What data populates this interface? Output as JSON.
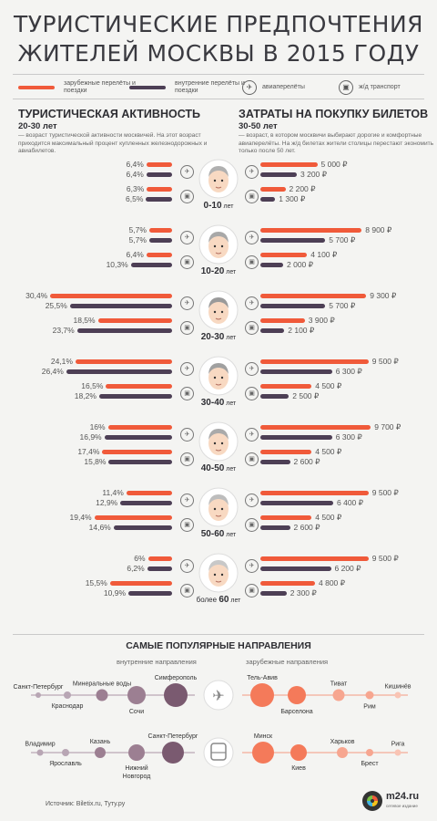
{
  "title_line1": "ТУРИСТИЧЕСКИЕ ПРЕДПОЧТЕНИЯ",
  "title_line2": "ЖИТЕЛЕЙ МОСКВЫ В 2015 ГОДУ",
  "legend": {
    "foreign": "зарубежные перелёты и поездки",
    "domestic": "внутренние перелёты и поездки",
    "air": "авиаперелёты",
    "rail": "ж/д транспорт"
  },
  "colors": {
    "foreign": "#f05a3a",
    "domestic": "#4d3f55",
    "background": "#f4f4f2"
  },
  "icons": {
    "air": "airplane-icon",
    "rail": "train-icon"
  },
  "activity": {
    "heading": "ТУРИСТИЧЕСКАЯ АКТИВНОСТЬ",
    "sub": "20-30 лет",
    "text": "— возраст туристической активности москвичей. На этот возраст приходится максимальный процент купленных железнодорожных и авиабилетов."
  },
  "spending": {
    "heading": "ЗАТРАТЫ НА ПОКУПКУ БИЛЕТОВ",
    "sub": "30-50 лет",
    "text": "— возраст, в котором москвичи выбирают дорогие и комфортные авиаперелёты. На ж/д билетах жители столицы перестают экономить только после 50 лет."
  },
  "chart_data": [
    {
      "type": "bar",
      "title": "ТУРИСТИЧЕСКАЯ АКТИВНОСТЬ",
      "unit": "%",
      "categories": [
        "0-10 лет",
        "10-20 лет",
        "20-30 лет",
        "30-40 лет",
        "40-50 лет",
        "50-60 лет",
        "более 60 лет"
      ],
      "series": [
        {
          "name": "зарубежные перелёты и поездки",
          "transport": "авиаперелёты",
          "values": [
            6.4,
            5.7,
            30.4,
            24.1,
            16,
            11.4,
            6
          ],
          "labels": [
            "6,4%",
            "5,7%",
            "30,4%",
            "24,1%",
            "16%",
            "11,4%",
            "6%"
          ]
        },
        {
          "name": "внутренние перелёты и поездки",
          "transport": "авиаперелёты",
          "values": [
            6.4,
            5.7,
            25.5,
            26.4,
            16.9,
            12.9,
            6.2
          ],
          "labels": [
            "6,4%",
            "5,7%",
            "25,5%",
            "26,4%",
            "16,9%",
            "12,9%",
            "6,2%"
          ]
        },
        {
          "name": "зарубежные перелёты и поездки",
          "transport": "ж/д транспорт",
          "values": [
            6.3,
            6.4,
            18.5,
            16.5,
            17.4,
            19.4,
            15.5
          ],
          "labels": [
            "6,3%",
            "6,4%",
            "18,5%",
            "16,5%",
            "17,4%",
            "19,4%",
            "15,5%"
          ]
        },
        {
          "name": "внутренние перелёты и поездки",
          "transport": "ж/д транспорт",
          "values": [
            6.5,
            10.3,
            23.7,
            18.2,
            15.8,
            14.6,
            10.9
          ],
          "labels": [
            "6,5%",
            "10,3%",
            "23,7%",
            "18,2%",
            "15,8%",
            "14,6%",
            "10,9%"
          ]
        }
      ]
    },
    {
      "type": "bar",
      "title": "ЗАТРАТЫ НА ПОКУПКУ БИЛЕТОВ",
      "unit": "₽",
      "categories": [
        "0-10 лет",
        "10-20 лет",
        "20-30 лет",
        "30-40 лет",
        "40-50 лет",
        "50-60 лет",
        "более 60 лет"
      ],
      "series": [
        {
          "name": "зарубежные перелёты и поездки",
          "transport": "авиаперелёты",
          "values": [
            5000,
            8900,
            9300,
            9500,
            9700,
            9500,
            9500
          ],
          "labels": [
            "5 000 ₽",
            "8 900 ₽",
            "9 300 ₽",
            "9 500 ₽",
            "9 700 ₽",
            "9 500 ₽",
            "9 500 ₽"
          ]
        },
        {
          "name": "внутренние перелёты и поездки",
          "transport": "авиаперелёты",
          "values": [
            3200,
            5700,
            5700,
            6300,
            6300,
            6400,
            6200
          ],
          "labels": [
            "3 200 ₽",
            "5 700 ₽",
            "5 700 ₽",
            "6 300 ₽",
            "6 300 ₽",
            "6 400 ₽",
            "6 200 ₽"
          ]
        },
        {
          "name": "зарубежные перелёты и поездки",
          "transport": "ж/д транспорт",
          "values": [
            2200,
            4100,
            3900,
            4500,
            4500,
            4500,
            4800
          ],
          "labels": [
            "2 200 ₽",
            "4 100 ₽",
            "3 900 ₽",
            "4 500 ₽",
            "4 500 ₽",
            "4 500 ₽",
            "4 800 ₽"
          ]
        },
        {
          "name": "внутренние перелёты и поездки",
          "transport": "ж/д транспорт",
          "values": [
            1300,
            2000,
            2100,
            2500,
            2600,
            2600,
            2300
          ],
          "labels": [
            "1 300 ₽",
            "2 000 ₽",
            "2 100 ₽",
            "2 500 ₽",
            "2 600 ₽",
            "2 600 ₽",
            "2 300 ₽"
          ]
        }
      ]
    }
  ],
  "ages": [
    {
      "main": "0-10",
      "suffix": "лет",
      "prefix": ""
    },
    {
      "main": "10-20",
      "suffix": "лет",
      "prefix": ""
    },
    {
      "main": "20-30",
      "suffix": "лет",
      "prefix": ""
    },
    {
      "main": "30-40",
      "suffix": "лет",
      "prefix": ""
    },
    {
      "main": "40-50",
      "suffix": "лет",
      "prefix": ""
    },
    {
      "main": "50-60",
      "suffix": "лет",
      "prefix": ""
    },
    {
      "main": "60",
      "suffix": "лет",
      "prefix": "более"
    }
  ],
  "destinations": {
    "heading": "САМЫЕ ПОПУЛЯРНЫЕ НАПРАВЛЕНИЯ",
    "domestic_label": "внутренние направления",
    "foreign_label": "зарубежные направления",
    "air_domestic": [
      "Санкт-Петербург",
      "Краснодар",
      "Минеральные воды",
      "Сочи",
      "Симферополь"
    ],
    "air_foreign": [
      "Тель-Авив",
      "Барселона",
      "Тиват",
      "Рим",
      "Кишинёв"
    ],
    "rail_domestic": [
      "Владимир",
      "Ярославль",
      "Казань",
      "Нижний Новгород",
      "Санкт-Петербург"
    ],
    "rail_foreign": [
      "Минск",
      "Киев",
      "Харьков",
      "Брест",
      "Рига"
    ]
  },
  "source": "Источник: Biletix.ru, Туту.ру",
  "logo": {
    "name": "m24.ru",
    "tagline": "сетевое издание"
  }
}
